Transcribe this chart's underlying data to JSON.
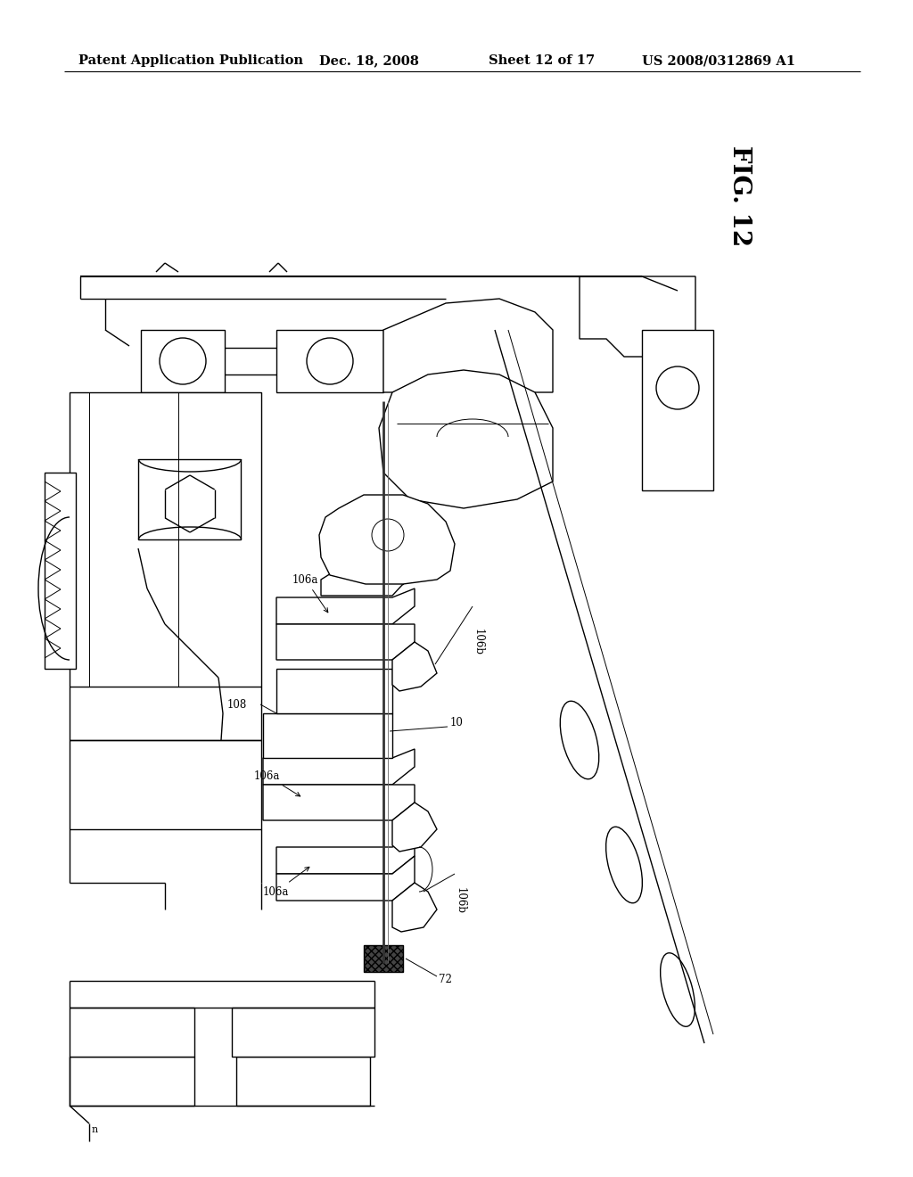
{
  "title": "Patent Application Publication",
  "date": "Dec. 18, 2008",
  "sheet": "Sheet 12 of 17",
  "patent_num": "US 2008/0312869 A1",
  "fig_label": "FIG. 12",
  "labels": {
    "106a_top": "106a",
    "106b_right": "106b",
    "108": "108",
    "10": "10",
    "106a_mid": "106a",
    "106b_mid": "106b",
    "106a_bot": "106a",
    "72": "72"
  },
  "bg_color": "#ffffff",
  "line_color": "#000000",
  "text_color": "#000000",
  "header_fontsize": 10.5,
  "fig_label_fontsize": 20,
  "label_fontsize": 8.5,
  "gray_light": "#cccccc",
  "gray_mid": "#999999",
  "gray_dark": "#555555"
}
